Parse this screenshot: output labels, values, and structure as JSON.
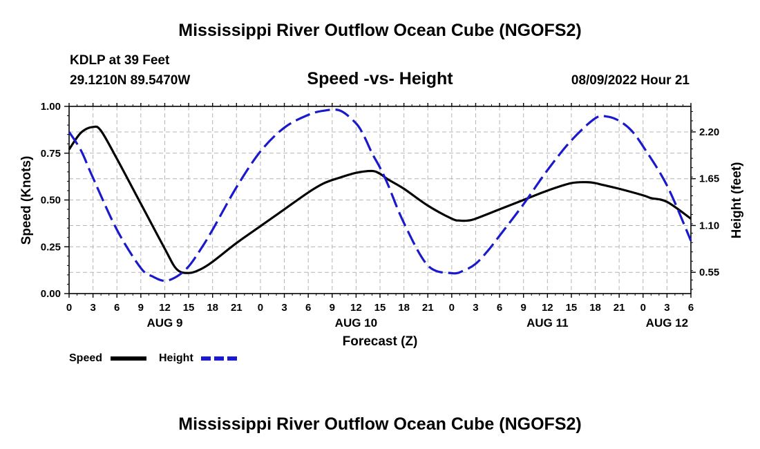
{
  "page": {
    "main_title": "Mississippi River Outflow Ocean Cube (NGOFS2)",
    "station_line": "KDLP at 39 Feet",
    "coords_line": "29.1210N  89.5470W",
    "date_line": "08/09/2022 Hour 21",
    "bottom_title": "Mississippi River Outflow Ocean Cube (NGOFS2)"
  },
  "legend": {
    "speed_label": "Speed",
    "height_label": "Height"
  },
  "colors": {
    "speed": "#000000",
    "height": "#1a1acc",
    "grid": "#b4b4b4"
  },
  "chart_data": {
    "type": "line",
    "title": "Speed -vs- Height",
    "xlabel": "Forecast (Z)",
    "ylabel": "Speed (Knots)",
    "y2label": "Height (feet)",
    "x_unit": "hours from 08/09/2022 00Z",
    "xlim": [
      0,
      78
    ],
    "ylim": [
      0,
      1
    ],
    "y2lim": [
      0.3,
      2.5
    ],
    "x_ticks": [
      0,
      3,
      6,
      9,
      12,
      15,
      18,
      21,
      24,
      27,
      30,
      33,
      36,
      39,
      42,
      45,
      48,
      51,
      54,
      57,
      60,
      63,
      66,
      69,
      72,
      75,
      78
    ],
    "x_tick_labels": [
      "0",
      "3",
      "6",
      "9",
      "12",
      "15",
      "18",
      "21",
      "0",
      "3",
      "6",
      "9",
      "12",
      "15",
      "18",
      "21",
      "0",
      "3",
      "6",
      "9",
      "12",
      "15",
      "18",
      "21",
      "0",
      "3",
      "6"
    ],
    "date_labels": [
      {
        "x": 12,
        "label": "AUG 9"
      },
      {
        "x": 36,
        "label": "AUG 10"
      },
      {
        "x": 60,
        "label": "AUG 11"
      },
      {
        "x": 75,
        "label": "AUG 12"
      }
    ],
    "y_ticks": [
      0,
      0.25,
      0.5,
      0.75,
      1
    ],
    "y_tick_labels": [
      "0.00",
      "0.25",
      "0.50",
      "0.75",
      "1.00"
    ],
    "y2_ticks": [
      0.55,
      1.1,
      1.65,
      2.2
    ],
    "y2_tick_labels": [
      "0.55",
      "1.10",
      "1.65",
      "2.20"
    ],
    "series": [
      {
        "name": "Speed",
        "axis": "left",
        "style": "solid",
        "x": [
          0,
          1.5,
          3,
          4,
          6,
          9,
          12,
          13.5,
          15,
          16.5,
          18,
          21,
          24,
          27,
          30,
          32,
          34,
          36,
          38,
          39,
          40,
          42,
          45,
          48,
          49,
          50,
          51,
          54,
          57,
          60,
          63,
          65,
          66,
          67,
          69,
          72,
          73,
          75,
          78
        ],
        "values": [
          0.77,
          0.86,
          0.89,
          0.87,
          0.72,
          0.48,
          0.24,
          0.13,
          0.11,
          0.13,
          0.17,
          0.27,
          0.36,
          0.45,
          0.54,
          0.59,
          0.62,
          0.645,
          0.655,
          0.64,
          0.61,
          0.56,
          0.47,
          0.4,
          0.39,
          0.39,
          0.4,
          0.45,
          0.5,
          0.55,
          0.59,
          0.595,
          0.59,
          0.58,
          0.56,
          0.525,
          0.51,
          0.49,
          0.4
        ]
      },
      {
        "name": "Height",
        "axis": "right",
        "style": "dashed",
        "x": [
          0,
          1.5,
          3,
          6,
          9,
          10.5,
          12,
          13.5,
          15,
          16.5,
          18,
          21,
          24,
          27,
          30,
          32,
          34,
          36,
          37,
          38,
          39,
          40,
          42,
          45,
          48,
          49.5,
          51,
          52.5,
          54,
          57,
          60,
          63,
          66,
          67.5,
          69,
          70.5,
          72,
          75,
          78
        ],
        "values": [
          2.2,
          1.98,
          1.66,
          1.05,
          0.6,
          0.5,
          0.45,
          0.5,
          0.62,
          0.82,
          1.05,
          1.55,
          1.97,
          2.25,
          2.4,
          2.45,
          2.45,
          2.3,
          2.15,
          1.95,
          1.78,
          1.58,
          1.13,
          0.63,
          0.54,
          0.57,
          0.65,
          0.8,
          0.98,
          1.35,
          1.75,
          2.1,
          2.36,
          2.38,
          2.33,
          2.22,
          2.03,
          1.57,
          0.92
        ]
      }
    ]
  }
}
